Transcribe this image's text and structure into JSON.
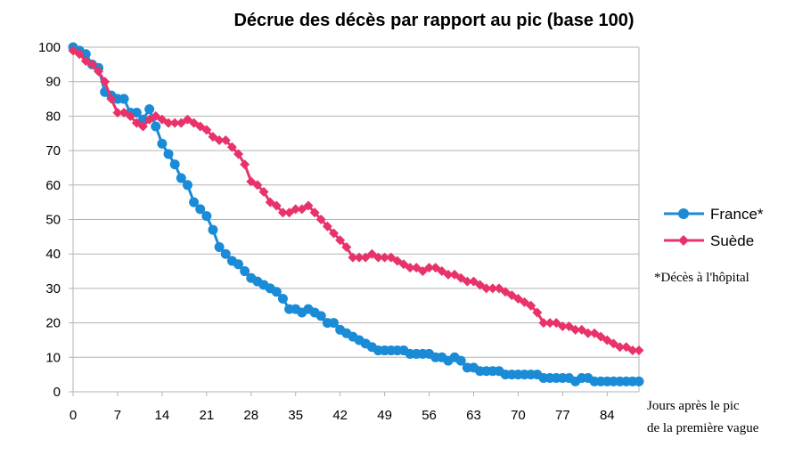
{
  "chart_data": {
    "type": "line",
    "title": "Décrue des décès par rapport au pic (base 100)",
    "xlabel": "Jours après le pic de la première vague",
    "xlabel_lines": [
      "Jours après le pic",
      "de la première vague"
    ],
    "ylabel": "",
    "xlim": [
      0,
      89
    ],
    "ylim": [
      0,
      100
    ],
    "x_ticks": [
      0,
      7,
      14,
      21,
      28,
      35,
      42,
      49,
      56,
      63,
      70,
      77,
      84
    ],
    "y_ticks": [
      0,
      10,
      20,
      30,
      40,
      50,
      60,
      70,
      80,
      90,
      100
    ],
    "grid": "horizontal",
    "legend_position": "right",
    "footnote": "*Décès à l'hôpital",
    "series": [
      {
        "name": "France*",
        "color": "#1a8bd6",
        "marker": "circle",
        "x": [
          0,
          1,
          2,
          3,
          4,
          5,
          6,
          7,
          8,
          9,
          10,
          11,
          12,
          13,
          14,
          15,
          16,
          17,
          18,
          19,
          20,
          21,
          22,
          23,
          24,
          25,
          26,
          27,
          28,
          29,
          30,
          31,
          32,
          33,
          34,
          35,
          36,
          37,
          38,
          39,
          40,
          41,
          42,
          43,
          44,
          45,
          46,
          47,
          48,
          49,
          50,
          51,
          52,
          53,
          54,
          55,
          56,
          57,
          58,
          59,
          60,
          61,
          62,
          63,
          64,
          65,
          66,
          67,
          68,
          69,
          70,
          71,
          72,
          73,
          74,
          75,
          76,
          77,
          78,
          79,
          80,
          81,
          82,
          83,
          84,
          85,
          86,
          87,
          88,
          89
        ],
        "values": [
          100,
          99,
          98,
          95,
          94,
          87,
          86,
          85,
          85,
          81,
          81,
          79,
          82,
          77,
          72,
          69,
          66,
          62,
          60,
          55,
          53,
          51,
          47,
          42,
          40,
          38,
          37,
          35,
          33,
          32,
          31,
          30,
          29,
          27,
          24,
          24,
          23,
          24,
          23,
          22,
          20,
          20,
          18,
          17,
          16,
          15,
          14,
          13,
          12,
          12,
          12,
          12,
          12,
          11,
          11,
          11,
          11,
          10,
          10,
          9,
          10,
          9,
          7,
          7,
          6,
          6,
          6,
          6,
          5,
          5,
          5,
          5,
          5,
          5,
          4,
          4,
          4,
          4,
          4,
          3,
          4,
          4,
          3,
          3,
          3,
          3,
          3,
          3,
          3,
          3
        ]
      },
      {
        "name": "Suède",
        "color": "#e8336a",
        "marker": "diamond",
        "x": [
          0,
          1,
          2,
          3,
          4,
          5,
          6,
          7,
          8,
          9,
          10,
          11,
          12,
          13,
          14,
          15,
          16,
          17,
          18,
          19,
          20,
          21,
          22,
          23,
          24,
          25,
          26,
          27,
          28,
          29,
          30,
          31,
          32,
          33,
          34,
          35,
          36,
          37,
          38,
          39,
          40,
          41,
          42,
          43,
          44,
          45,
          46,
          47,
          48,
          49,
          50,
          51,
          52,
          53,
          54,
          55,
          56,
          57,
          58,
          59,
          60,
          61,
          62,
          63,
          64,
          65,
          66,
          67,
          68,
          69,
          70,
          71,
          72,
          73,
          74,
          75,
          76,
          77,
          78,
          79,
          80,
          81,
          82,
          83,
          84,
          85,
          86,
          87,
          88,
          89
        ],
        "values": [
          99,
          98,
          96,
          95,
          93,
          90,
          85,
          81,
          81,
          80,
          78,
          77,
          79,
          80,
          79,
          78,
          78,
          78,
          79,
          78,
          77,
          76,
          74,
          73,
          73,
          71,
          69,
          66,
          61,
          60,
          58,
          55,
          54,
          52,
          52,
          53,
          53,
          54,
          52,
          50,
          48,
          46,
          44,
          42,
          39,
          39,
          39,
          40,
          39,
          39,
          39,
          38,
          37,
          36,
          36,
          35,
          36,
          36,
          35,
          34,
          34,
          33,
          32,
          32,
          31,
          30,
          30,
          30,
          29,
          28,
          27,
          26,
          25,
          23,
          20,
          20,
          20,
          19,
          19,
          18,
          18,
          17,
          17,
          16,
          15,
          14,
          13,
          13,
          12,
          12
        ]
      }
    ]
  }
}
